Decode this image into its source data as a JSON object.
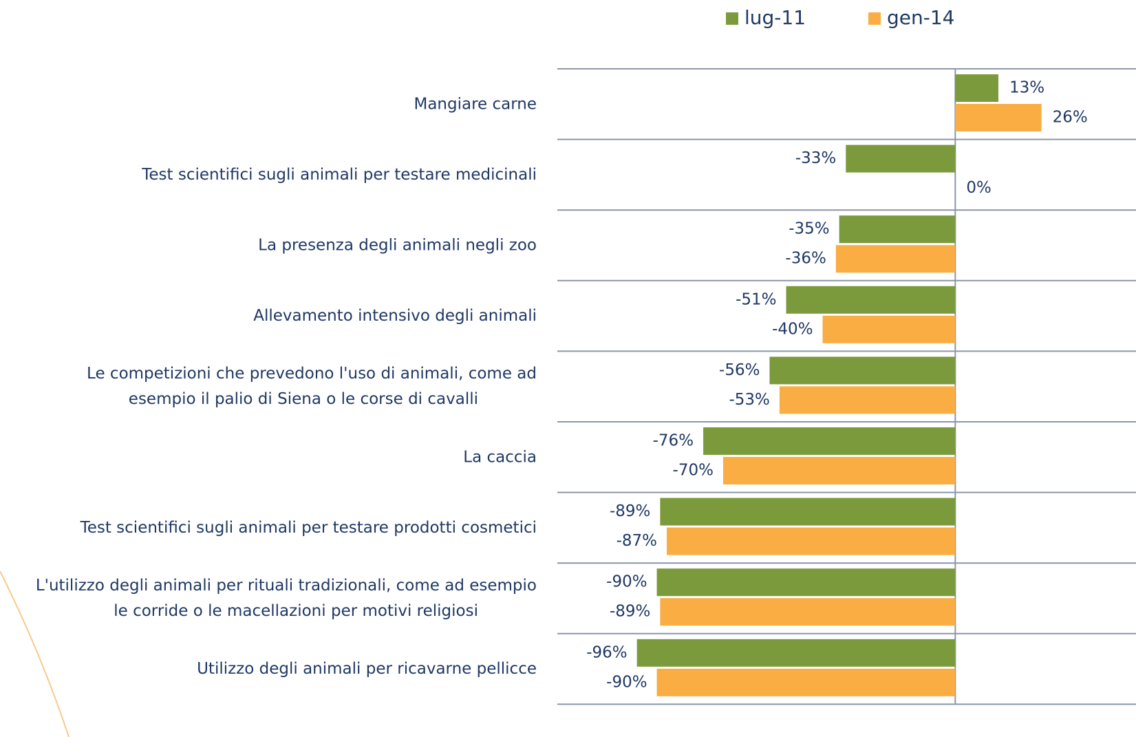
{
  "chart_data": {
    "type": "hbar",
    "categories": [
      "Mangiare carne",
      "Test scientifici sugli animali per testare medicinali",
      "La presenza degli animali negli zoo",
      "Allevamento intensivo degli animali",
      "Le competizioni che prevedono l'uso di animali, come ad\nesempio il palio di Siena o le corse di cavalli",
      "La caccia",
      "Test scientifici sugli animali per testare prodotti cosmetici",
      "L'utilizzo degli animali per rituali tradizionali, come ad esempio\nle corride o le macellazioni per motivi religiosi",
      "Utilizzo degli animali per ricavarne pellicce"
    ],
    "series": [
      {
        "name": "lug-11",
        "color": "#7a9a3c",
        "values": [
          13,
          -33,
          -35,
          -51,
          -56,
          -76,
          -89,
          -90,
          -96
        ],
        "value_labels": [
          "13%",
          "-33%",
          "-35%",
          "-51%",
          "-56%",
          "-76%",
          "-89%",
          "-90%",
          "-96%"
        ]
      },
      {
        "name": "gen-14",
        "color": "#f9ad42",
        "values": [
          26,
          0,
          -36,
          -40,
          -53,
          -70,
          -87,
          -89,
          -90
        ],
        "value_labels": [
          "26%",
          "0%",
          "-36%",
          "-40%",
          "-53%",
          "-70%",
          "-87%",
          "-89%",
          "-90%"
        ]
      }
    ],
    "xlim": [
      -120,
      54.5
    ]
  }
}
